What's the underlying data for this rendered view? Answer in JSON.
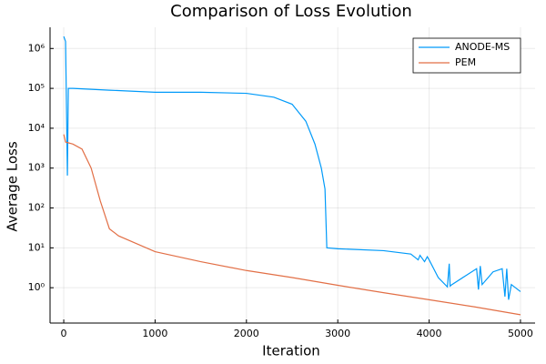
{
  "chart_data": {
    "type": "line",
    "title": "Comparison of Loss Evolution",
    "xlabel": "Iteration",
    "ylabel": "Average Loss",
    "yscale": "log",
    "grid": true,
    "legend": "top-right",
    "xlim": [
      -150,
      5160
    ],
    "ylim": [
      0.13,
      3400000
    ],
    "xticks": [
      0,
      1000,
      2000,
      3000,
      4000,
      5000
    ],
    "yticks": [
      {
        "value": 1,
        "label": "10⁰"
      },
      {
        "value": 10,
        "label": "10¹"
      },
      {
        "value": 100,
        "label": "10²"
      },
      {
        "value": 1000,
        "label": "10³"
      },
      {
        "value": 10000,
        "label": "10⁴"
      },
      {
        "value": 100000,
        "label": "10⁵"
      },
      {
        "value": 1000000,
        "label": "10⁶"
      }
    ],
    "series": [
      {
        "name": "ANODE-MS",
        "color": "#009af9",
        "x": [
          0,
          20,
          40,
          50,
          100,
          500,
          1000,
          1500,
          2000,
          2300,
          2500,
          2650,
          2750,
          2820,
          2860,
          2880,
          3000,
          3500,
          3800,
          3880,
          3900,
          3950,
          3980,
          4000,
          4050,
          4100,
          4200,
          4220,
          4230,
          4250,
          4400,
          4520,
          4540,
          4560,
          4580,
          4700,
          4800,
          4830,
          4850,
          4870,
          4900,
          5000
        ],
        "values": [
          2000000,
          1500000,
          650,
          100000,
          100000,
          90000,
          80000,
          80000,
          75000,
          60000,
          40000,
          15000,
          4000,
          1000,
          300,
          10,
          9.5,
          8.5,
          7,
          5,
          6.5,
          4.5,
          6,
          5,
          3,
          1.8,
          1.05,
          4,
          1.1,
          1.2,
          2,
          3,
          0.9,
          3.5,
          1.2,
          2.5,
          3,
          0.6,
          3,
          0.5,
          1.2,
          0.8
        ]
      },
      {
        "name": "PEM",
        "color": "#e26f46",
        "x": [
          0,
          20,
          100,
          200,
          300,
          400,
          500,
          600,
          1000,
          1500,
          2000,
          2500,
          3000,
          3500,
          4000,
          4500,
          5000
        ],
        "values": [
          7000,
          4500,
          4000,
          3000,
          1000,
          150,
          30,
          20,
          8,
          4.5,
          2.7,
          1.8,
          1.15,
          0.75,
          0.5,
          0.33,
          0.21
        ]
      }
    ]
  }
}
